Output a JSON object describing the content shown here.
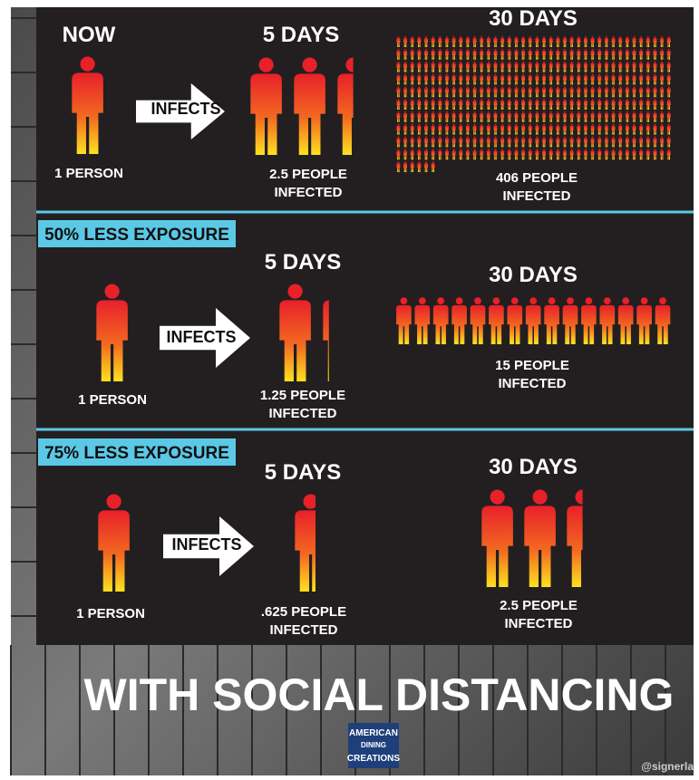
{
  "sections": [
    {
      "now": "NOW",
      "five_days": "5 DAYS",
      "thirty_days": "30 DAYS",
      "start": "1 PERSON",
      "arrow": "INFECTS",
      "five_result": [
        "2.5 PEOPLE",
        "INFECTED"
      ],
      "thirty_result": [
        "406 PEOPLE",
        "INFECTED"
      ]
    },
    {
      "label": "50% LESS EXPOSURE",
      "five_days": "5 DAYS",
      "thirty_days": "30 DAYS",
      "start": "1 PERSON",
      "arrow": "INFECTS",
      "five_result": [
        "1.25 PEOPLE",
        "INFECTED"
      ],
      "thirty_result": [
        "15 PEOPLE",
        "INFECTED"
      ]
    },
    {
      "label": "75% LESS EXPOSURE",
      "five_days": "5 DAYS",
      "thirty_days": "30 DAYS",
      "start": "1 PERSON",
      "arrow": "INFECTS",
      "five_result": [
        ".625 PEOPLE",
        "INFECTED"
      ],
      "thirty_result": [
        "2.5 PEOPLE",
        "INFECTED"
      ]
    }
  ],
  "footer": {
    "headline": "WITH SOCIAL DISTANCING",
    "logo": [
      "AMERICAN",
      "DINING",
      "CREATIONS"
    ],
    "watermark": "@signerla"
  }
}
